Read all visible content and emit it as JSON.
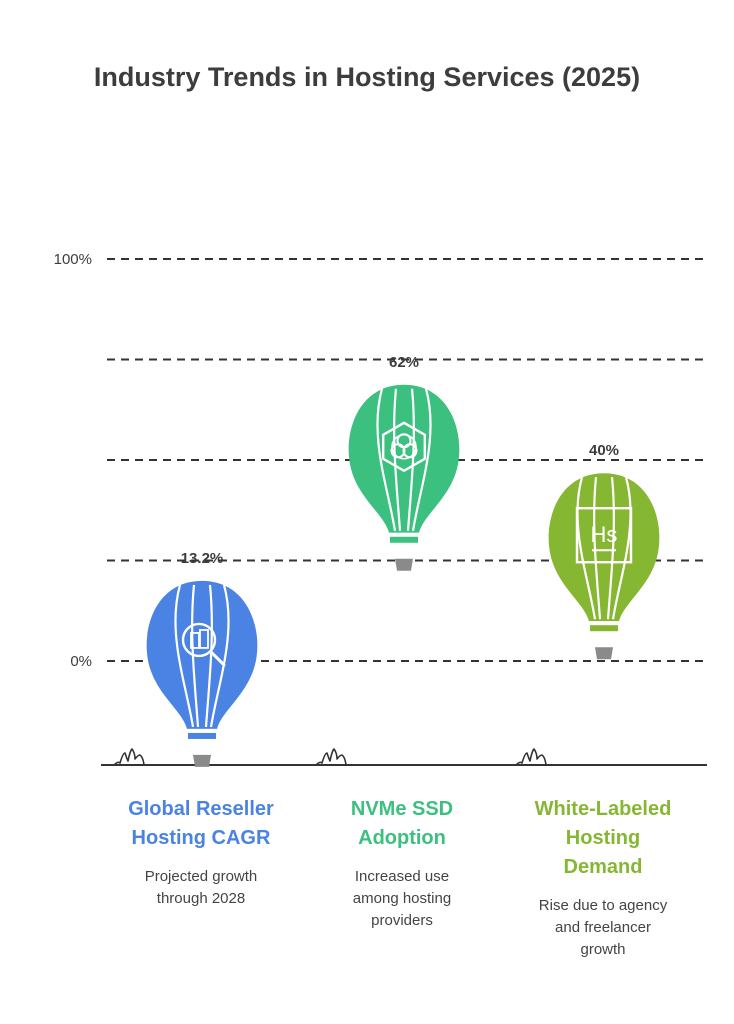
{
  "title": "Industry Trends in Hosting Services (2025)",
  "colors": {
    "text": "#3d3d3d",
    "grid": "#333333",
    "basket": "#8a8a8a"
  },
  "chart_data": {
    "type": "bar",
    "style": "hot-air-balloon infographic",
    "title": "Industry Trends in Hosting Services (2025)",
    "ylim": [
      0,
      100
    ],
    "yticks": [
      {
        "value": 0,
        "label": "0%"
      },
      {
        "value": 25,
        "label": ""
      },
      {
        "value": 50,
        "label": ""
      },
      {
        "value": 75,
        "label": ""
      },
      {
        "value": 100,
        "label": "100%"
      }
    ],
    "grid": true,
    "categories": [
      "Global Reseller Hosting CAGR",
      "NVMe SSD Adoption",
      "White-Labeled Hosting Demand"
    ],
    "values": [
      13.2,
      62,
      40
    ],
    "value_labels": [
      "13.2%",
      "62%",
      "40%"
    ]
  },
  "items": [
    {
      "title_lines": [
        "Global Reseller",
        "Hosting CAGR"
      ],
      "description_lines": [
        "Projected growth",
        "through 2028"
      ],
      "color": "#4a83e3",
      "icon": "magnifying-glass-building-icon"
    },
    {
      "title_lines": [
        "NVMe SSD",
        "Adoption"
      ],
      "description_lines": [
        "Increased use",
        "among hosting",
        "providers"
      ],
      "color": "#3cc07f",
      "icon": "hexagon-nodes-icon"
    },
    {
      "title_lines": [
        "White-Labeled",
        "Hosting",
        "Demand"
      ],
      "description_lines": [
        "Rise due to agency",
        "and freelancer",
        "growth"
      ],
      "color": "#86b733",
      "icon": "hs-box-icon"
    }
  ]
}
